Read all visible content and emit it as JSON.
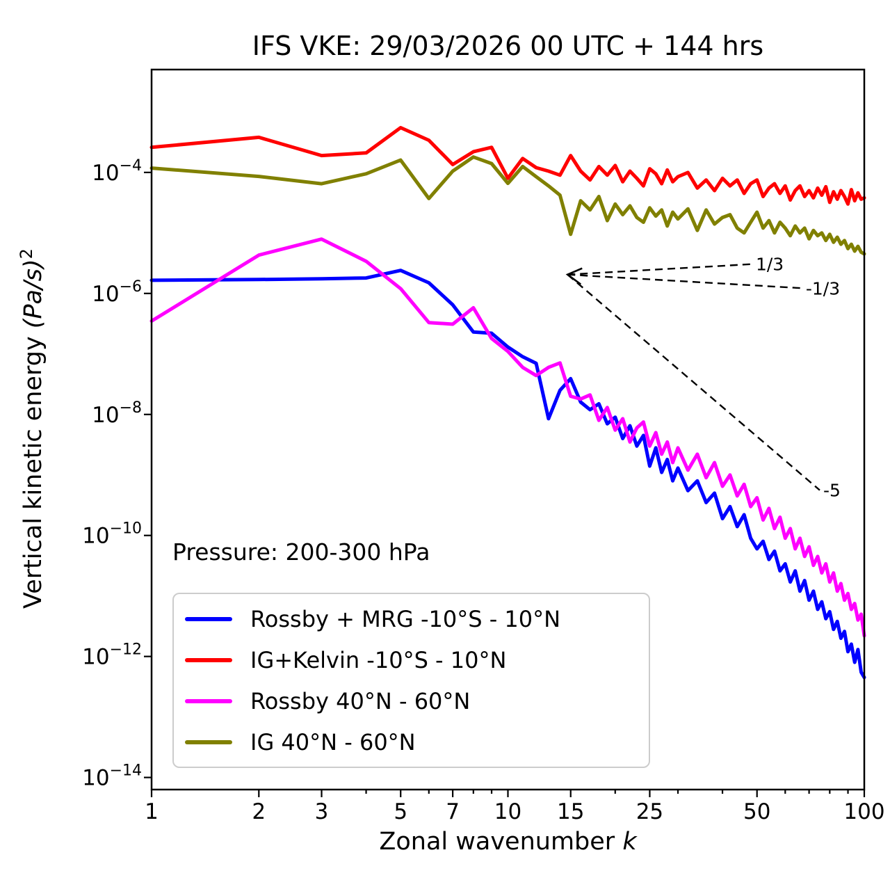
{
  "chart_data": {
    "type": "line",
    "title": "IFS VKE: 29/03/2026 00 UTC + 144 hrs",
    "annotation": "Pressure: 200-300 hPa",
    "xlabel_parts": {
      "text": "Zonal wavenumber ",
      "italic": "k"
    },
    "ylabel_parts": {
      "text": "Vertical kinetic energy ",
      "unit": "(Pa/s)",
      "sup": "2"
    },
    "xscale": "log",
    "yscale": "log",
    "xlim": [
      1,
      100
    ],
    "ylim": [
      1e-14,
      0.005
    ],
    "grid": false,
    "xticks": [
      1,
      2,
      3,
      5,
      7,
      10,
      15,
      25,
      50,
      100
    ],
    "xticks_minor": [
      4,
      6,
      8,
      9,
      20,
      30,
      40,
      60,
      70,
      80,
      90
    ],
    "ytick_exponents": [
      -4,
      -6,
      -8,
      -10,
      -12,
      -14
    ],
    "legend_position": "lower left",
    "k": [
      1,
      2,
      3,
      4,
      5,
      6,
      7,
      8,
      9,
      10,
      11,
      12,
      13,
      14,
      15,
      16,
      17,
      18,
      19,
      20,
      21,
      22,
      23,
      24,
      25,
      26,
      27,
      28,
      29,
      30,
      32,
      34,
      36,
      38,
      40,
      42,
      44,
      46,
      48,
      50,
      52,
      54,
      56,
      58,
      60,
      62,
      64,
      66,
      68,
      70,
      72,
      74,
      76,
      78,
      80,
      82,
      84,
      86,
      88,
      90,
      92,
      94,
      96,
      98,
      100
    ],
    "series": [
      {
        "name": "Rossby + MRG -10°S - 10°N",
        "color": "#0000ff",
        "values": [
          1.65e-06,
          1.7e-06,
          1.75e-06,
          1.8e-06,
          2.4e-06,
          1.5e-06,
          6.5e-07,
          2.3e-07,
          2.2e-07,
          1.3e-07,
          9e-08,
          7e-08,
          8.5e-09,
          2.5e-08,
          3.9e-08,
          1.6e-08,
          1.2e-08,
          1.5e-08,
          7e-09,
          9e-09,
          4e-09,
          6.5e-09,
          3e-09,
          4.5e-09,
          1.4e-09,
          2.8e-09,
          1.1e-09,
          1.8e-09,
          8e-10,
          1.3e-09,
          5.5e-10,
          8e-10,
          3.5e-10,
          5e-10,
          1.9e-10,
          3e-10,
          1.4e-10,
          2.2e-10,
          9e-11,
          6e-11,
          8e-11,
          4e-11,
          5.5e-11,
          2.6e-11,
          3.4e-11,
          1.7e-11,
          2.6e-11,
          1.2e-11,
          1.8e-11,
          8.5e-12,
          1.2e-11,
          6e-12,
          8e-12,
          4.2e-12,
          5.5e-12,
          2.8e-12,
          3.8e-12,
          2e-12,
          2.6e-12,
          1.2e-12,
          1.6e-12,
          8e-13,
          1.3e-12,
          5.5e-13,
          4.5e-13
        ]
      },
      {
        "name": "IG+Kelvin -10°S - 10°N",
        "color": "#ff0000",
        "values": [
          0.00026,
          0.00038,
          0.00019,
          0.00021,
          0.00055,
          0.00034,
          0.000135,
          0.00022,
          0.00026,
          8e-05,
          0.00017,
          0.00012,
          0.000105,
          9e-05,
          0.00019,
          0.000105,
          7.5e-05,
          0.000125,
          9e-05,
          0.00013,
          7e-05,
          0.000105,
          8e-05,
          6e-05,
          0.000115,
          9.5e-05,
          6.5e-05,
          0.00011,
          7e-05,
          8.5e-05,
          0.0001,
          5.5e-05,
          7.5e-05,
          5e-05,
          8e-05,
          6e-05,
          7.5e-05,
          4.5e-05,
          6.5e-05,
          7.5e-05,
          4e-05,
          5.5e-05,
          6.5e-05,
          4.5e-05,
          6e-05,
          3.5e-05,
          5e-05,
          6e-05,
          4e-05,
          5e-05,
          3.8e-05,
          5.5e-05,
          4.2e-05,
          5.8e-05,
          3.2e-05,
          4.8e-05,
          3.6e-05,
          5e-05,
          4e-05,
          3e-05,
          5.2e-05,
          3.4e-05,
          4.6e-05,
          3.6e-05,
          3.8e-05
        ]
      },
      {
        "name": "Rossby 40°N - 60°N",
        "color": "#ff00ff",
        "values": [
          3.5e-07,
          4.3e-06,
          7.9e-06,
          3.4e-06,
          1.2e-06,
          3.3e-07,
          3.1e-07,
          5.8e-07,
          1.8e-07,
          1.1e-07,
          6e-08,
          4.4e-08,
          6e-08,
          7.1e-08,
          2e-08,
          1.8e-08,
          2.1e-08,
          8e-09,
          1.3e-08,
          5.5e-09,
          8.5e-09,
          3.5e-09,
          6e-09,
          7.5e-09,
          3e-09,
          5e-09,
          2.2e-09,
          3.5e-09,
          1.6e-09,
          2.8e-09,
          1.2e-09,
          2.2e-09,
          9e-10,
          1.6e-09,
          6.5e-10,
          1e-09,
          4.5e-10,
          7e-10,
          3e-10,
          4.2e-10,
          1.8e-10,
          2.8e-10,
          1.3e-10,
          2e-10,
          9e-11,
          1.3e-10,
          6e-11,
          9e-11,
          4.5e-11,
          6.5e-11,
          3.2e-11,
          4.5e-11,
          2.4e-11,
          3.4e-11,
          1.7e-11,
          2.4e-11,
          1.2e-11,
          1.6e-11,
          8.5e-12,
          1.1e-11,
          6e-12,
          7.5e-12,
          4e-12,
          5e-12,
          2.2e-12
        ]
      },
      {
        "name": "IG 40°N - 60°N",
        "color": "#808000",
        "values": [
          0.000118,
          8.6e-05,
          6.5e-05,
          9.5e-05,
          0.00016,
          3.7e-05,
          0.000105,
          0.00018,
          0.00014,
          6.6e-05,
          0.000125,
          8.5e-05,
          6e-05,
          4.2e-05,
          9.5e-06,
          3.4e-05,
          2.4e-05,
          4e-05,
          1.6e-05,
          3e-05,
          2e-05,
          2.8e-05,
          1.8e-05,
          1.5e-05,
          2.6e-05,
          1.9e-05,
          2.4e-05,
          1.3e-05,
          2.2e-05,
          1.7e-05,
          2.5e-05,
          1.1e-05,
          2.4e-05,
          1.4e-05,
          1.8e-05,
          2e-05,
          1.2e-05,
          1e-05,
          1.5e-05,
          2.2e-05,
          1.2e-05,
          1.6e-05,
          1e-05,
          1.5e-05,
          1.2e-05,
          9e-06,
          1.3e-05,
          1e-05,
          1.2e-05,
          8e-06,
          1.1e-05,
          9e-06,
          1e-05,
          7.5e-06,
          9.5e-06,
          7e-06,
          8.5e-06,
          6.5e-06,
          7.5e-06,
          5.5e-06,
          6.5e-06,
          5e-06,
          6e-06,
          4.8e-06,
          4.5e-06
        ]
      }
    ],
    "reference_lines": [
      {
        "label": "1/3",
        "k": [
          14.7,
          48.5
        ],
        "v": [
          2.05e-06,
          3.05e-06
        ]
      },
      {
        "label": "-1/3",
        "k": [
          14.7,
          67.0
        ],
        "v": [
          2.05e-06,
          1.22e-06
        ]
      },
      {
        "label": "-5",
        "k": [
          14.7,
          75.0
        ],
        "v": [
          2.05e-06,
          5.6e-10
        ]
      }
    ],
    "legend": {
      "items": [
        {
          "label": "Rossby + MRG -10°S - 10°N",
          "color": "#0000ff"
        },
        {
          "label": "IG+Kelvin -10°S - 10°N",
          "color": "#ff0000"
        },
        {
          "label": "Rossby 40°N - 60°N",
          "color": "#ff00ff"
        },
        {
          "label": "IG 40°N - 60°N",
          "color": "#808000"
        }
      ]
    }
  }
}
